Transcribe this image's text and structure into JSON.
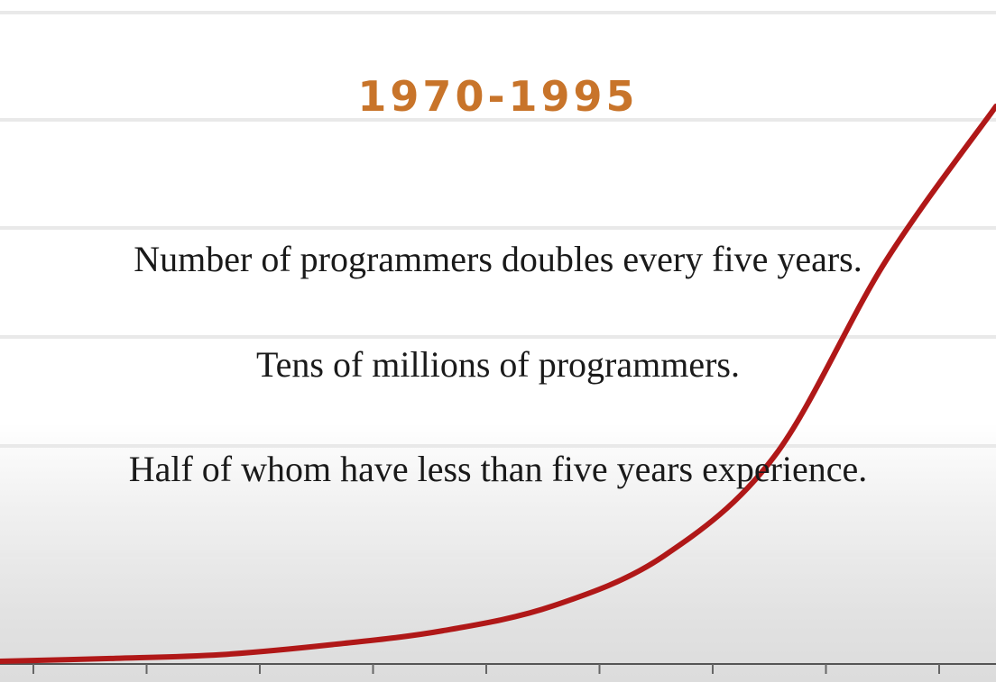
{
  "slide": {
    "title": "1970-1995",
    "title_color": "#c8742a",
    "statements": [
      "Number of programmers doubles every five years.",
      "Tens of millions of programmers.",
      "Half of whom have less than five years experience."
    ]
  },
  "chart_data": {
    "type": "line",
    "title": "",
    "xlabel": "",
    "ylabel": "",
    "x_tick_count": 9,
    "grid": true,
    "color": "#b01818",
    "x": [
      0,
      1,
      2,
      3,
      4,
      5,
      6,
      7,
      8,
      9
    ],
    "y": [
      0,
      0.5,
      1.2,
      3,
      5.5,
      10,
      19,
      37,
      72,
      100
    ]
  }
}
